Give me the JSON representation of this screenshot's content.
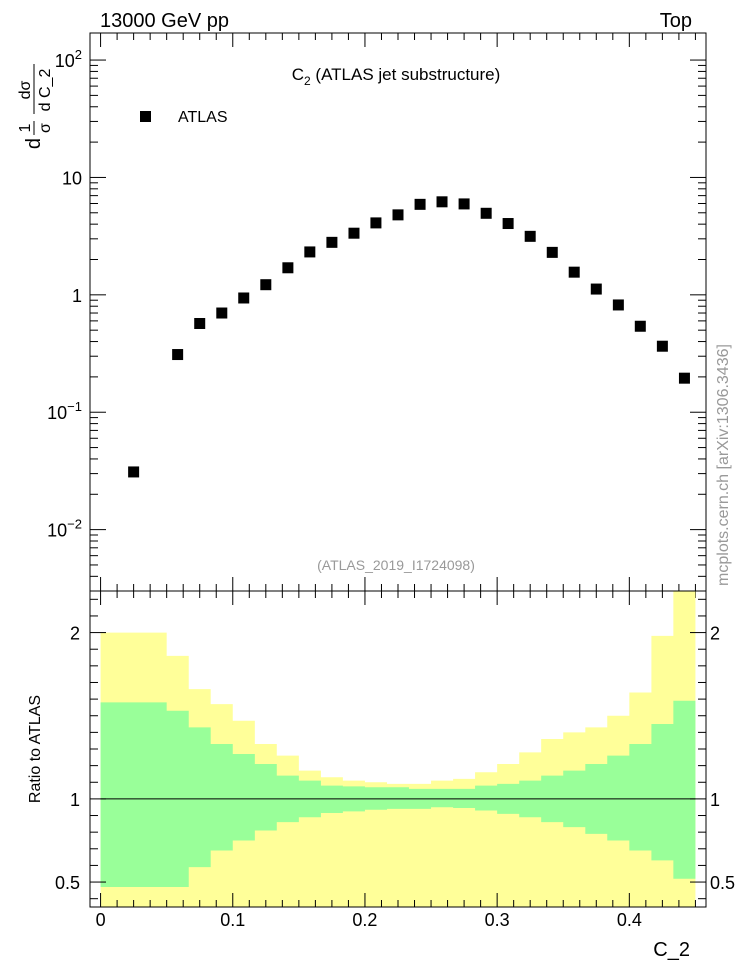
{
  "header": {
    "left": "13000 GeV pp",
    "right": "Top"
  },
  "side_label": "mcplots.cern.ch [arXiv:1306.3436]",
  "chart_data": [
    {
      "type": "scatter",
      "title": "C_2 (ATLAS jet substructure)",
      "title_main": "C",
      "title_sub": "2",
      "title_rest": " (ATLAS jet substructure)",
      "ylabel_parts": [
        "d",
        "1",
        "σ",
        "dσ",
        "d C_2"
      ],
      "yscale": "log",
      "ylim": [
        0.003,
        170
      ],
      "xlim": [
        -0.008,
        0.458
      ],
      "y_ticks": [
        {
          "label": "10",
          "sup": "2",
          "value": 100
        },
        {
          "label": "10",
          "sup": "",
          "value": 10
        },
        {
          "label": "1",
          "sup": "",
          "value": 1
        },
        {
          "label": "10",
          "sup": "−1",
          "value": 0.1
        },
        {
          "label": "10",
          "sup": "−2",
          "value": 0.01
        }
      ],
      "legend": {
        "position": "top-left",
        "entries": [
          "ATLAS"
        ]
      },
      "annotation": "(ATLAS_2019_I1724098)",
      "series": [
        {
          "name": "ATLAS",
          "color": "#000000",
          "x": [
            0.025,
            0.0583,
            0.075,
            0.0917,
            0.1083,
            0.125,
            0.1417,
            0.1583,
            0.175,
            0.1917,
            0.2083,
            0.225,
            0.2417,
            0.2583,
            0.275,
            0.2917,
            0.3083,
            0.325,
            0.3417,
            0.3583,
            0.375,
            0.3917,
            0.4083,
            0.425,
            0.4417
          ],
          "y": [
            0.031,
            0.31,
            0.57,
            0.7,
            0.94,
            1.22,
            1.7,
            2.32,
            2.8,
            3.35,
            4.1,
            4.8,
            5.9,
            6.2,
            5.95,
            4.95,
            4.05,
            3.15,
            2.3,
            1.56,
            1.12,
            0.82,
            0.54,
            0.365,
            0.195
          ]
        }
      ]
    },
    {
      "type": "area",
      "ylabel": "Ratio to ATLAS",
      "xlabel": "C_2",
      "xlim": [
        -0.008,
        0.458
      ],
      "ylim": [
        0.35,
        2.25
      ],
      "x_ticks": [
        {
          "label": "0",
          "value": 0
        },
        {
          "label": "0.1",
          "value": 0.1
        },
        {
          "label": "0.2",
          "value": 0.2
        },
        {
          "label": "0.3",
          "value": 0.3
        },
        {
          "label": "0.4",
          "value": 0.4
        }
      ],
      "y_ticks": [
        {
          "label": "0.5",
          "value": 0.5
        },
        {
          "label": "1",
          "value": 1
        },
        {
          "label": "2",
          "value": 2
        }
      ],
      "reference_line": 1,
      "bands": {
        "edges": [
          0,
          0.05,
          0.0667,
          0.0833,
          0.1,
          0.1167,
          0.1333,
          0.15,
          0.1667,
          0.1833,
          0.2,
          0.2167,
          0.2333,
          0.25,
          0.2667,
          0.2833,
          0.3,
          0.3167,
          0.3333,
          0.35,
          0.3667,
          0.3833,
          0.4,
          0.4167,
          0.4333,
          0.45
        ],
        "inner_color": "#99ff99",
        "outer_color": "#ffff99",
        "inner_up": [
          1.58,
          1.53,
          1.43,
          1.33,
          1.27,
          1.21,
          1.14,
          1.11,
          1.08,
          1.075,
          1.07,
          1.07,
          1.06,
          1.06,
          1.06,
          1.08,
          1.09,
          1.11,
          1.14,
          1.17,
          1.21,
          1.26,
          1.33,
          1.45,
          1.59,
          2.15
        ],
        "inner_down": [
          0.47,
          0.47,
          0.59,
          0.69,
          0.75,
          0.81,
          0.86,
          0.89,
          0.915,
          0.925,
          0.935,
          0.94,
          0.94,
          0.95,
          0.945,
          0.93,
          0.91,
          0.89,
          0.86,
          0.83,
          0.79,
          0.75,
          0.69,
          0.63,
          0.52,
          0.35
        ],
        "outer_up": [
          2.0,
          1.86,
          1.66,
          1.57,
          1.47,
          1.33,
          1.26,
          1.17,
          1.13,
          1.11,
          1.1,
          1.09,
          1.09,
          1.11,
          1.12,
          1.16,
          1.21,
          1.28,
          1.36,
          1.4,
          1.43,
          1.5,
          1.64,
          1.98,
          2.25,
          2.25
        ],
        "outer_down": [
          0.35,
          0.35,
          0.35,
          0.35,
          0.35,
          0.35,
          0.35,
          0.35,
          0.35,
          0.35,
          0.35,
          0.35,
          0.35,
          0.35,
          0.35,
          0.35,
          0.35,
          0.35,
          0.35,
          0.35,
          0.35,
          0.35,
          0.35,
          0.35,
          0.35,
          0.35
        ]
      }
    }
  ]
}
